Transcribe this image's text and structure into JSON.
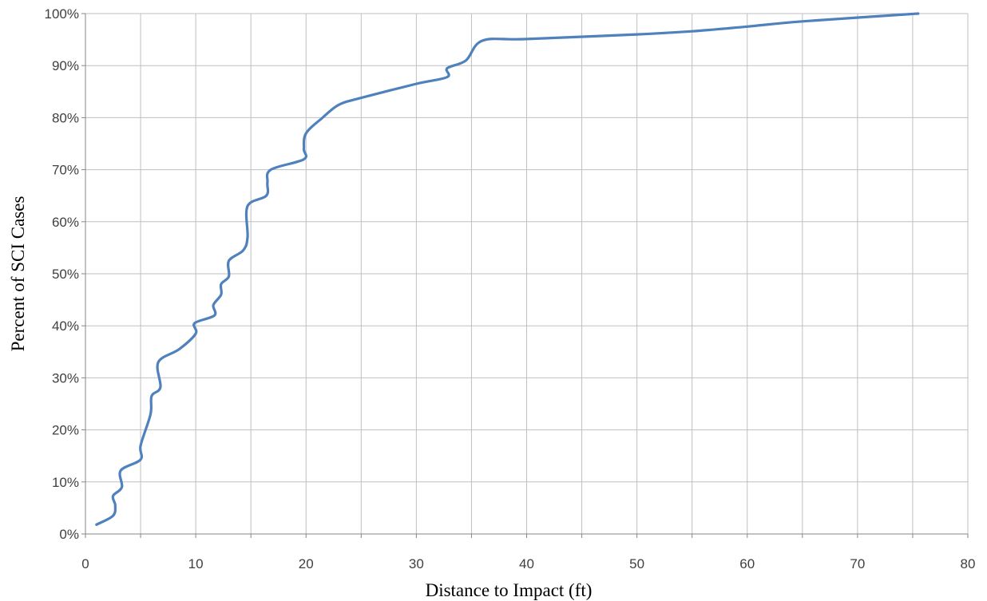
{
  "chart_data": {
    "type": "line",
    "title": "",
    "xlabel": "Distance to Impact (ft)",
    "ylabel": "Percent of SCI Cases",
    "xlim": [
      0,
      80
    ],
    "ylim": [
      0,
      100
    ],
    "x_ticks": [
      0,
      10,
      20,
      30,
      40,
      50,
      60,
      70,
      80
    ],
    "y_ticks": [
      "0%",
      "10%",
      "20%",
      "30%",
      "40%",
      "50%",
      "60%",
      "70%",
      "80%",
      "90%",
      "100%"
    ],
    "grid": true,
    "legend": "none",
    "series_color": "#4F81BD",
    "series": [
      {
        "name": "",
        "x": [
          1,
          2.5,
          2.7,
          2.5,
          3.3,
          3.2,
          5,
          5,
          5.9,
          6.0,
          6.8,
          6.6,
          8.5,
          10.0,
          9.9,
          11.7,
          11.6,
          12.3,
          12.3,
          13.0,
          13.0,
          14.3,
          14.7,
          14.7,
          16.4,
          16.5,
          16.8,
          19.8,
          19.8,
          20,
          21.5,
          23,
          25,
          30,
          32.8,
          32.8,
          34.5,
          36,
          40,
          50,
          55,
          60,
          65,
          75.5
        ],
        "y": [
          1.8,
          3.5,
          5.5,
          7.3,
          9.0,
          12.2,
          14.3,
          17.0,
          23.0,
          26.5,
          28.2,
          33.0,
          35.5,
          38.5,
          40.5,
          42.0,
          44.0,
          46.0,
          48.0,
          49.5,
          52.5,
          54.5,
          57.0,
          63.0,
          65.0,
          67.5,
          70.0,
          72.0,
          74.0,
          77.0,
          80.0,
          82.5,
          83.8,
          86.5,
          87.8,
          89.5,
          91.0,
          94.8,
          95.1,
          96.0,
          96.6,
          97.5,
          98.5,
          100
        ]
      }
    ]
  }
}
